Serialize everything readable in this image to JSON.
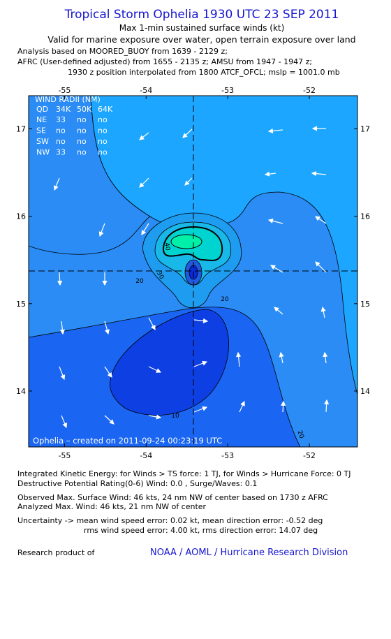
{
  "header": {
    "title": "Tropical Storm Ophelia 1930 UTC 23 SEP 2011",
    "subtitle": "Max 1-min sustained surface winds (kt)",
    "validity": "Valid for marine exposure over water, open terrain exposure over land",
    "analysis_lines": [
      "Analysis based on MOORED_BUOY from 1639 - 2129 z;",
      "AFRC (User-defined adjusted) from 1655 - 2135 z; AMSU from 1947 - 1947 z;",
      "1930 z position interpolated from 1800 ATCF_OFCL; mslp = 1001.0 mb"
    ]
  },
  "map": {
    "xlim": [
      -55.44,
      -51.41
    ],
    "ylim": [
      13.36,
      17.38
    ],
    "xticks": [
      -55,
      -54,
      -53,
      -52
    ],
    "yticks": [
      14,
      15,
      16,
      17
    ],
    "contour_labels": [
      20,
      30,
      40,
      20,
      10,
      20
    ],
    "credit": "Ophelia – created on 2011-09-24 00:23:19 UTC",
    "wind_radii": {
      "title": "WIND RADII (NM)",
      "header": [
        "QD",
        "34K",
        "50K",
        "64K"
      ],
      "rows": [
        [
          "NE",
          33,
          "no",
          "no"
        ],
        [
          "SE",
          "no",
          "no",
          "no"
        ],
        [
          "SW",
          "no",
          "no",
          "no"
        ],
        [
          "NW",
          33,
          "no",
          "no"
        ]
      ]
    }
  },
  "footer": {
    "lines": [
      "Integrated Kinetic Energy:  for Winds > TS force: 1 TJ,  for Winds > Hurricane Force: 0 TJ",
      "Destructive Potential Rating(0-6)   Wind: 0.0 , Surge/Waves: 0.1",
      "Observed Max. Surface Wind: 46 kts, 24 nm NW of center based on 1730 z AFRC",
      "Analyzed Max. Wind: 46 kts, 21 nm NW of center",
      "Uncertainty -> mean wind speed error: 0.02 kt,   mean direction error:  -0.52 deg",
      "rms wind speed error: 4.00 kt,   rms direction error: 14.07 deg"
    ],
    "research_label": "Research product of",
    "organization": "NOAA / AOML / Hurricane Research Division"
  }
}
